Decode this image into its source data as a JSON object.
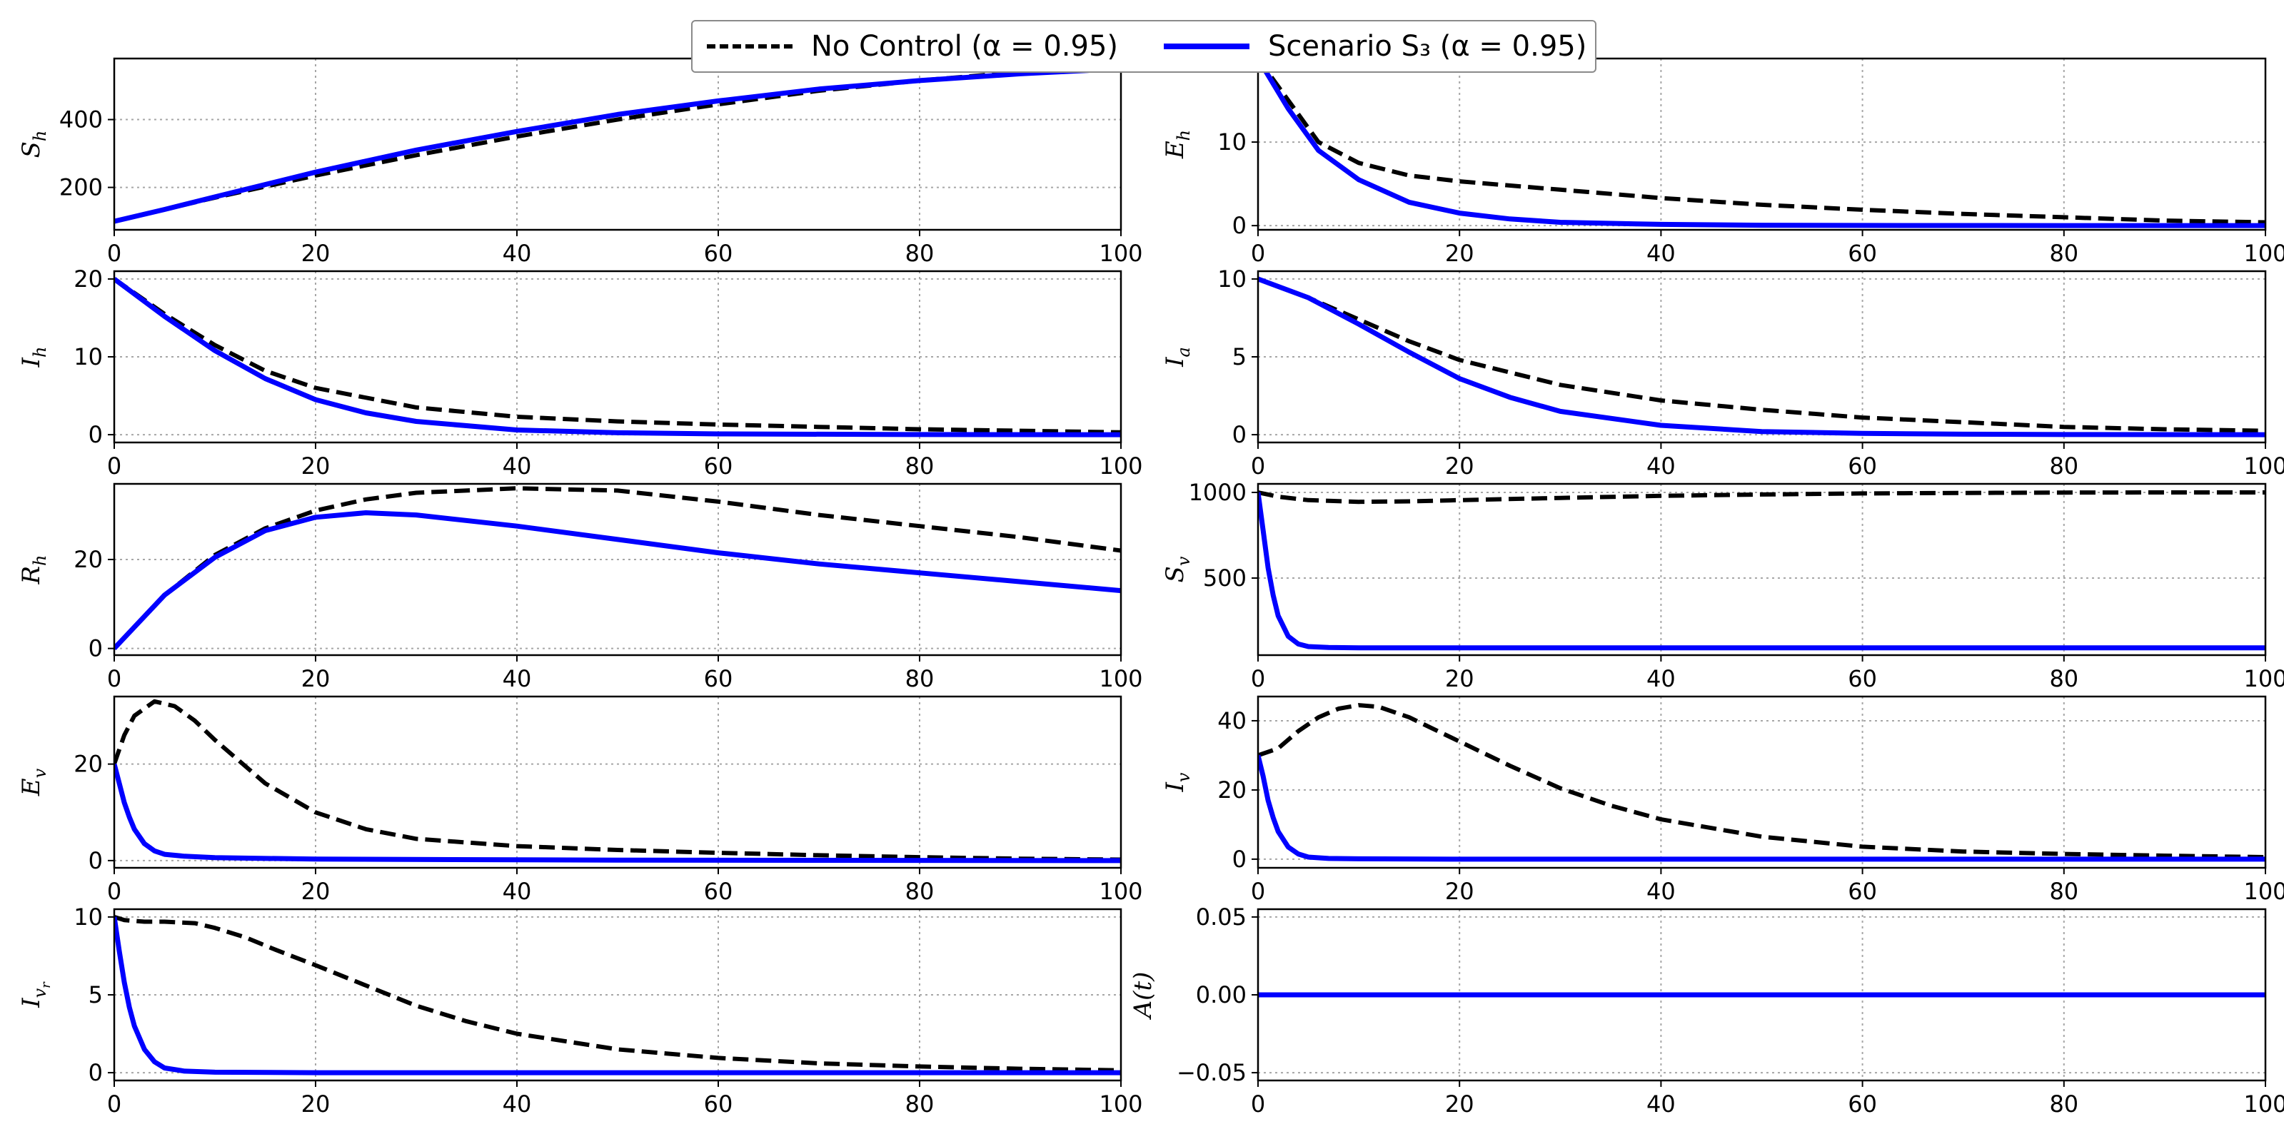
{
  "legend": {
    "no_control": "No Control (α = 0.95)",
    "scenario": "Scenario S₃ (α = 0.95)"
  },
  "colors": {
    "no_control": "#000000",
    "scenario": "#0000ff"
  },
  "chart_data": [
    {
      "type": "line",
      "id": "Sh",
      "ylabel": "S_h",
      "ylabel_base": "S",
      "ylabel_sub": "h",
      "xlim": [
        0,
        100
      ],
      "ylim": [
        75,
        580
      ],
      "yticks": [
        200,
        400
      ],
      "xticks": [
        0,
        20,
        40,
        60,
        80,
        100
      ],
      "series": [
        {
          "name": "No Control",
          "style": "dashed",
          "x": [
            0,
            5,
            10,
            20,
            30,
            40,
            50,
            60,
            70,
            80,
            90,
            100
          ],
          "y": [
            100,
            135,
            170,
            235,
            295,
            350,
            400,
            445,
            485,
            515,
            540,
            560
          ]
        },
        {
          "name": "Scenario S3",
          "style": "solid",
          "x": [
            0,
            5,
            10,
            20,
            30,
            40,
            50,
            60,
            70,
            80,
            90,
            100
          ],
          "y": [
            100,
            135,
            172,
            245,
            310,
            365,
            415,
            455,
            490,
            515,
            535,
            550
          ]
        }
      ]
    },
    {
      "type": "line",
      "id": "Eh",
      "ylabel": "E_h",
      "ylabel_base": "E",
      "ylabel_sub": "h",
      "xlim": [
        0,
        100
      ],
      "ylim": [
        -0.5,
        20
      ],
      "yticks": [
        0,
        10
      ],
      "xticks": [
        0,
        20,
        40,
        60,
        80,
        100
      ],
      "series": [
        {
          "name": "No Control",
          "style": "dashed",
          "x": [
            0,
            3,
            6,
            10,
            15,
            20,
            30,
            40,
            50,
            60,
            70,
            80,
            90,
            100
          ],
          "y": [
            20,
            15,
            10,
            7.5,
            6,
            5.3,
            4.3,
            3.3,
            2.5,
            1.9,
            1.4,
            1.0,
            0.6,
            0.4
          ]
        },
        {
          "name": "Scenario S3",
          "style": "solid",
          "x": [
            0,
            3,
            6,
            10,
            15,
            20,
            25,
            30,
            40,
            50,
            60,
            80,
            100
          ],
          "y": [
            20,
            14,
            9,
            5.5,
            2.8,
            1.5,
            0.8,
            0.4,
            0.15,
            0.05,
            0.02,
            0,
            0
          ]
        }
      ]
    },
    {
      "type": "line",
      "id": "Ih",
      "ylabel": "I_h",
      "ylabel_base": "I",
      "ylabel_sub": "h",
      "xlim": [
        0,
        100
      ],
      "ylim": [
        -1,
        21
      ],
      "yticks": [
        0,
        10,
        20
      ],
      "xticks": [
        0,
        20,
        40,
        60,
        80,
        100
      ],
      "series": [
        {
          "name": "No Control",
          "style": "dashed",
          "x": [
            0,
            5,
            10,
            15,
            20,
            30,
            40,
            50,
            60,
            70,
            80,
            90,
            100
          ],
          "y": [
            20,
            15.5,
            11.5,
            8.2,
            6,
            3.5,
            2.3,
            1.7,
            1.3,
            1.0,
            0.7,
            0.5,
            0.3
          ]
        },
        {
          "name": "Scenario S3",
          "style": "solid",
          "x": [
            0,
            5,
            10,
            15,
            20,
            25,
            30,
            40,
            50,
            60,
            80,
            100
          ],
          "y": [
            20,
            15.2,
            10.8,
            7.2,
            4.5,
            2.8,
            1.7,
            0.6,
            0.25,
            0.1,
            0.02,
            0
          ]
        }
      ]
    },
    {
      "type": "line",
      "id": "Ia",
      "ylabel": "I_a",
      "ylabel_base": "I",
      "ylabel_sub": "a",
      "xlim": [
        0,
        100
      ],
      "ylim": [
        -0.5,
        10.5
      ],
      "yticks": [
        0,
        5,
        10
      ],
      "xticks": [
        0,
        20,
        40,
        60,
        80,
        100
      ],
      "series": [
        {
          "name": "No Control",
          "style": "dashed",
          "x": [
            0,
            5,
            10,
            15,
            20,
            30,
            40,
            50,
            60,
            70,
            80,
            90,
            100
          ],
          "y": [
            10,
            8.8,
            7.4,
            6,
            4.8,
            3.2,
            2.2,
            1.6,
            1.1,
            0.8,
            0.5,
            0.35,
            0.25
          ]
        },
        {
          "name": "Scenario S3",
          "style": "solid",
          "x": [
            0,
            5,
            10,
            15,
            20,
            25,
            30,
            40,
            50,
            60,
            70,
            80,
            100
          ],
          "y": [
            10,
            8.8,
            7.1,
            5.3,
            3.6,
            2.4,
            1.5,
            0.6,
            0.2,
            0.08,
            0.03,
            0.01,
            0
          ]
        }
      ]
    },
    {
      "type": "line",
      "id": "Rh",
      "ylabel": "R_h",
      "ylabel_base": "R",
      "ylabel_sub": "h",
      "xlim": [
        0,
        100
      ],
      "ylim": [
        -1.5,
        37
      ],
      "yticks": [
        0,
        20
      ],
      "xticks": [
        0,
        20,
        40,
        60,
        80,
        100
      ],
      "series": [
        {
          "name": "No Control",
          "style": "dashed",
          "x": [
            0,
            5,
            10,
            15,
            20,
            25,
            30,
            40,
            50,
            60,
            70,
            80,
            90,
            100
          ],
          "y": [
            0,
            12,
            21,
            27,
            31,
            33.5,
            35,
            36,
            35.5,
            33,
            30,
            27.5,
            25,
            22
          ]
        },
        {
          "name": "Scenario S3",
          "style": "solid",
          "x": [
            0,
            5,
            10,
            15,
            20,
            25,
            30,
            40,
            50,
            60,
            70,
            80,
            90,
            100
          ],
          "y": [
            0,
            12,
            20.5,
            26.5,
            29.5,
            30.5,
            30,
            27.5,
            24.5,
            21.5,
            19,
            17,
            15,
            13
          ]
        }
      ]
    },
    {
      "type": "line",
      "id": "Sv",
      "ylabel": "S_v",
      "ylabel_base": "S",
      "ylabel_sub": "v",
      "xlim": [
        0,
        100
      ],
      "ylim": [
        50,
        1050
      ],
      "yticks": [
        500,
        1000
      ],
      "xticks": [
        0,
        20,
        40,
        60,
        80,
        100
      ],
      "series": [
        {
          "name": "No Control",
          "style": "dashed",
          "x": [
            0,
            2,
            5,
            10,
            15,
            20,
            30,
            40,
            50,
            60,
            70,
            80,
            90,
            100
          ],
          "y": [
            1000,
            975,
            955,
            945,
            948,
            955,
            968,
            980,
            988,
            994,
            997,
            999,
            1000,
            1000
          ]
        },
        {
          "name": "Scenario S3",
          "style": "solid",
          "x": [
            0,
            0.5,
            1,
            1.5,
            2,
            3,
            4,
            5,
            7,
            10,
            20,
            50,
            100
          ],
          "y": [
            1000,
            780,
            560,
            400,
            280,
            160,
            115,
            100,
            95,
            93,
            93,
            93,
            93
          ]
        }
      ]
    },
    {
      "type": "line",
      "id": "Ev",
      "ylabel": "E_v",
      "ylabel_base": "E",
      "ylabel_sub": "v",
      "xlim": [
        0,
        100
      ],
      "ylim": [
        -1.5,
        34
      ],
      "yticks": [
        0,
        20
      ],
      "xticks": [
        0,
        20,
        40,
        60,
        80,
        100
      ],
      "series": [
        {
          "name": "No Control",
          "style": "dashed",
          "x": [
            0,
            1,
            2,
            4,
            6,
            8,
            10,
            15,
            20,
            25,
            30,
            40,
            50,
            60,
            70,
            80,
            90,
            100
          ],
          "y": [
            20,
            26,
            30,
            33,
            32,
            29,
            25,
            16,
            10,
            6.5,
            4.5,
            3,
            2.2,
            1.6,
            1.1,
            0.7,
            0.4,
            0.2
          ]
        },
        {
          "name": "Scenario S3",
          "style": "solid",
          "x": [
            0,
            0.5,
            1,
            1.5,
            2,
            3,
            4,
            5,
            7,
            10,
            20,
            50,
            100
          ],
          "y": [
            20,
            16,
            12,
            9,
            6.5,
            3.5,
            2,
            1.3,
            0.9,
            0.6,
            0.3,
            0.1,
            0
          ]
        }
      ]
    },
    {
      "type": "line",
      "id": "Iv",
      "ylabel": "I_v",
      "ylabel_base": "I",
      "ylabel_sub": "v",
      "xlim": [
        0,
        100
      ],
      "ylim": [
        -2.5,
        47
      ],
      "yticks": [
        0,
        20,
        40
      ],
      "xticks": [
        0,
        20,
        40,
        60,
        80,
        100
      ],
      "series": [
        {
          "name": "No Control",
          "style": "dashed",
          "x": [
            0,
            2,
            4,
            6,
            8,
            10,
            12,
            15,
            20,
            25,
            30,
            35,
            40,
            50,
            60,
            70,
            80,
            90,
            100
          ],
          "y": [
            30,
            32,
            37,
            41,
            43.5,
            44.5,
            44,
            41,
            34,
            27,
            20.5,
            15.5,
            11.5,
            6.5,
            3.6,
            2.2,
            1.5,
            1.0,
            0.6
          ]
        },
        {
          "name": "Scenario S3",
          "style": "solid",
          "x": [
            0,
            0.5,
            1,
            1.5,
            2,
            3,
            4,
            5,
            7,
            10,
            20,
            50,
            100
          ],
          "y": [
            30,
            24,
            17,
            12,
            8,
            3.5,
            1.5,
            0.6,
            0.2,
            0.1,
            0,
            0,
            0
          ]
        }
      ]
    },
    {
      "type": "line",
      "id": "Ivr",
      "ylabel": "I_v_r",
      "ylabel_base": "I",
      "ylabel_sub": "v",
      "ylabel_subsub": "r",
      "xlim": [
        0,
        100
      ],
      "ylim": [
        -0.5,
        10.5
      ],
      "yticks": [
        0,
        5,
        10
      ],
      "xticks": [
        0,
        20,
        40,
        60,
        80,
        100
      ],
      "series": [
        {
          "name": "No Control",
          "style": "dashed",
          "x": [
            0,
            1,
            3,
            5,
            8,
            10,
            13,
            16,
            20,
            25,
            30,
            35,
            40,
            50,
            60,
            70,
            80,
            90,
            100
          ],
          "y": [
            10,
            9.8,
            9.7,
            9.7,
            9.6,
            9.3,
            8.7,
            7.9,
            6.9,
            5.6,
            4.3,
            3.3,
            2.5,
            1.5,
            0.95,
            0.6,
            0.4,
            0.25,
            0.15
          ]
        },
        {
          "name": "Scenario S3",
          "style": "solid",
          "x": [
            0,
            0.5,
            1,
            1.5,
            2,
            3,
            4,
            5,
            7,
            10,
            20,
            50,
            100
          ],
          "y": [
            10,
            7.8,
            5.8,
            4.2,
            3,
            1.5,
            0.7,
            0.3,
            0.1,
            0.03,
            0,
            0,
            0
          ]
        }
      ]
    },
    {
      "type": "line",
      "id": "At",
      "ylabel": "A(t)",
      "ylabel_base": "A(t)",
      "ylabel_sub": "",
      "xlim": [
        0,
        100
      ],
      "ylim": [
        -0.055,
        0.055
      ],
      "yticks": [
        -0.05,
        0,
        0.05
      ],
      "ytick_labels": [
        "−0.05",
        "0.00",
        "0.05"
      ],
      "xticks": [
        0,
        20,
        40,
        60,
        80,
        100
      ],
      "series": [
        {
          "name": "Scenario S3",
          "style": "solid",
          "x": [
            0,
            100
          ],
          "y": [
            0,
            0
          ]
        }
      ]
    }
  ]
}
